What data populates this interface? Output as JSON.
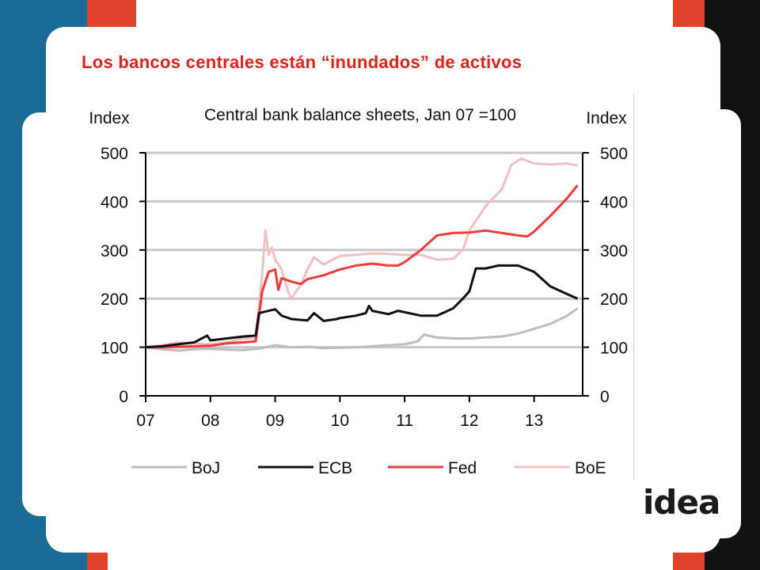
{
  "slide": {
    "title": "Los bancos centrales están “inundados” de activos",
    "logo_text": "idea"
  },
  "colors": {
    "title": "#e2211c",
    "left_band": "#1a6b96",
    "right_band": "#111111",
    "accent_red": "#e0432a"
  },
  "chart_data": {
    "type": "line",
    "title": "Central bank balance sheets, Jan 07 =100",
    "ylabel_left": "Index",
    "ylabel_right": "Index",
    "ylim": [
      0,
      500
    ],
    "yticks": [
      0,
      100,
      200,
      300,
      400,
      500
    ],
    "xlim": [
      2007.0,
      2013.75
    ],
    "xticks": [
      2007,
      2008,
      2009,
      2010,
      2011,
      2012,
      2013
    ],
    "xtick_labels": [
      "07",
      "08",
      "09",
      "10",
      "11",
      "12",
      "13"
    ],
    "grid": true,
    "legend_position": "bottom",
    "series": [
      {
        "name": "BoJ",
        "color": "#bdbdbd",
        "points": [
          [
            2007.0,
            100
          ],
          [
            2007.25,
            96
          ],
          [
            2007.5,
            93
          ],
          [
            2007.75,
            96
          ],
          [
            2008.0,
            97
          ],
          [
            2008.25,
            95
          ],
          [
            2008.5,
            94
          ],
          [
            2008.75,
            97
          ],
          [
            2009.0,
            104
          ],
          [
            2009.25,
            100
          ],
          [
            2009.5,
            101
          ],
          [
            2009.75,
            98
          ],
          [
            2010.0,
            99
          ],
          [
            2010.25,
            100
          ],
          [
            2010.5,
            102
          ],
          [
            2010.75,
            104
          ],
          [
            2011.0,
            106
          ],
          [
            2011.2,
            112
          ],
          [
            2011.3,
            126
          ],
          [
            2011.5,
            120
          ],
          [
            2011.75,
            118
          ],
          [
            2012.0,
            118
          ],
          [
            2012.25,
            120
          ],
          [
            2012.5,
            122
          ],
          [
            2012.75,
            128
          ],
          [
            2013.0,
            138
          ],
          [
            2013.25,
            148
          ],
          [
            2013.5,
            164
          ],
          [
            2013.67,
            180
          ]
        ]
      },
      {
        "name": "ECB",
        "color": "#111111",
        "points": [
          [
            2007.0,
            100
          ],
          [
            2007.25,
            102
          ],
          [
            2007.5,
            106
          ],
          [
            2007.75,
            110
          ],
          [
            2007.95,
            124
          ],
          [
            2008.0,
            114
          ],
          [
            2008.25,
            118
          ],
          [
            2008.5,
            122
          ],
          [
            2008.7,
            124
          ],
          [
            2008.75,
            170
          ],
          [
            2008.9,
            175
          ],
          [
            2009.0,
            178
          ],
          [
            2009.1,
            165
          ],
          [
            2009.25,
            158
          ],
          [
            2009.5,
            155
          ],
          [
            2009.6,
            170
          ],
          [
            2009.75,
            154
          ],
          [
            2009.95,
            158
          ],
          [
            2010.0,
            160
          ],
          [
            2010.25,
            165
          ],
          [
            2010.4,
            170
          ],
          [
            2010.45,
            185
          ],
          [
            2010.5,
            175
          ],
          [
            2010.75,
            168
          ],
          [
            2010.9,
            175
          ],
          [
            2011.0,
            172
          ],
          [
            2011.25,
            165
          ],
          [
            2011.5,
            165
          ],
          [
            2011.75,
            180
          ],
          [
            2011.9,
            200
          ],
          [
            2012.0,
            215
          ],
          [
            2012.1,
            262
          ],
          [
            2012.25,
            262
          ],
          [
            2012.45,
            268
          ],
          [
            2012.75,
            268
          ],
          [
            2013.0,
            255
          ],
          [
            2013.25,
            225
          ],
          [
            2013.5,
            210
          ],
          [
            2013.67,
            200
          ]
        ]
      },
      {
        "name": "Fed",
        "color": "#ee3b3b",
        "points": [
          [
            2007.0,
            100
          ],
          [
            2007.25,
            100
          ],
          [
            2007.5,
            101
          ],
          [
            2007.75,
            102
          ],
          [
            2008.0,
            103
          ],
          [
            2008.25,
            108
          ],
          [
            2008.5,
            110
          ],
          [
            2008.7,
            112
          ],
          [
            2008.8,
            215
          ],
          [
            2008.9,
            255
          ],
          [
            2009.0,
            260
          ],
          [
            2009.05,
            218
          ],
          [
            2009.1,
            242
          ],
          [
            2009.25,
            235
          ],
          [
            2009.4,
            230
          ],
          [
            2009.5,
            240
          ],
          [
            2009.75,
            248
          ],
          [
            2010.0,
            260
          ],
          [
            2010.25,
            268
          ],
          [
            2010.5,
            272
          ],
          [
            2010.75,
            268
          ],
          [
            2010.9,
            268
          ],
          [
            2011.0,
            275
          ],
          [
            2011.25,
            300
          ],
          [
            2011.5,
            330
          ],
          [
            2011.75,
            335
          ],
          [
            2012.0,
            336
          ],
          [
            2012.25,
            340
          ],
          [
            2012.5,
            335
          ],
          [
            2012.75,
            330
          ],
          [
            2012.9,
            328
          ],
          [
            2013.0,
            338
          ],
          [
            2013.25,
            370
          ],
          [
            2013.5,
            405
          ],
          [
            2013.67,
            433
          ]
        ]
      },
      {
        "name": "BoE",
        "color": "#f2c0c0",
        "points": [
          [
            2007.0,
            100
          ],
          [
            2007.25,
            104
          ],
          [
            2007.5,
            110
          ],
          [
            2007.75,
            108
          ],
          [
            2008.0,
            106
          ],
          [
            2008.25,
            110
          ],
          [
            2008.5,
            118
          ],
          [
            2008.7,
            118
          ],
          [
            2008.8,
            250
          ],
          [
            2008.85,
            340
          ],
          [
            2008.9,
            290
          ],
          [
            2008.95,
            305
          ],
          [
            2009.0,
            280
          ],
          [
            2009.1,
            260
          ],
          [
            2009.2,
            215
          ],
          [
            2009.25,
            200
          ],
          [
            2009.4,
            230
          ],
          [
            2009.5,
            260
          ],
          [
            2009.6,
            285
          ],
          [
            2009.75,
            270
          ],
          [
            2010.0,
            288
          ],
          [
            2010.25,
            290
          ],
          [
            2010.5,
            293
          ],
          [
            2010.75,
            292
          ],
          [
            2011.0,
            290
          ],
          [
            2011.25,
            290
          ],
          [
            2011.5,
            280
          ],
          [
            2011.75,
            282
          ],
          [
            2011.9,
            300
          ],
          [
            2012.0,
            340
          ],
          [
            2012.25,
            390
          ],
          [
            2012.5,
            425
          ],
          [
            2012.65,
            475
          ],
          [
            2012.8,
            488
          ],
          [
            2013.0,
            478
          ],
          [
            2013.25,
            476
          ],
          [
            2013.5,
            478
          ],
          [
            2013.67,
            474
          ]
        ]
      }
    ]
  }
}
